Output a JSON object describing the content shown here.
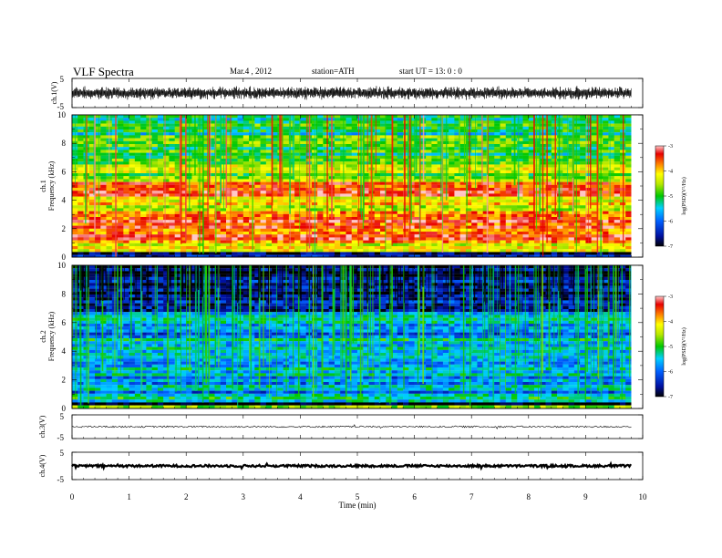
{
  "header": {
    "title": "VLF  Spectra",
    "date": "Mar.4   , 2012",
    "station": "station=ATH",
    "start": "start  UT  =    13: 0  : 0"
  },
  "chart_data": [
    {
      "type": "line",
      "panel": "waveform-ch1",
      "ylabel": "ch.1(V)",
      "xlim": [
        0,
        10
      ],
      "ylim": [
        -5,
        5
      ],
      "yticks": [
        "5",
        "-5"
      ],
      "x_extent": [
        0,
        9.8
      ],
      "amplitude_range": [
        -2.5,
        2.5
      ],
      "color": "#000000"
    },
    {
      "type": "heatmap",
      "panel": "spectrogram-ch1",
      "ylabel": [
        "ch.1",
        "Frequency  (kHz)"
      ],
      "xlim": [
        0,
        10
      ],
      "ylim": [
        0,
        10
      ],
      "yticks": [
        "0",
        "2",
        "4",
        "6",
        "8",
        "10"
      ],
      "x_extent": [
        0,
        9.8
      ],
      "colorbar": {
        "label": "log(PSD)(V²/Hz)",
        "range": [
          -7,
          -3
        ],
        "ticks": [
          "-3",
          "-4",
          "-5",
          "-6",
          "-7"
        ]
      },
      "bands_khz_logpsd": [
        [
          0.0,
          0.3,
          -6.5
        ],
        [
          0.3,
          0.9,
          -4.4
        ],
        [
          0.9,
          3.2,
          -3.6
        ],
        [
          3.2,
          4.2,
          -4.2
        ],
        [
          4.2,
          4.6,
          -3.7
        ],
        [
          4.6,
          5.2,
          -3.4
        ],
        [
          5.2,
          7.0,
          -4.6
        ],
        [
          7.0,
          8.5,
          -5.0
        ],
        [
          8.5,
          10.0,
          -5.2
        ]
      ]
    },
    {
      "type": "heatmap",
      "panel": "spectrogram-ch2",
      "ylabel": [
        "ch.2",
        "Frequency  (kHz)"
      ],
      "xlim": [
        0,
        10
      ],
      "ylim": [
        0,
        10
      ],
      "yticks": [
        "0",
        "2",
        "4",
        "6",
        "8",
        "10"
      ],
      "x_extent": [
        0,
        9.8
      ],
      "colorbar": {
        "label": "log(PSD)(V²/Hz)",
        "range": [
          -7,
          -3
        ],
        "ticks": [
          "-3",
          "-4",
          "-5",
          "-6",
          "-7"
        ]
      },
      "bands_khz_logpsd": [
        [
          0.0,
          0.2,
          -5.0
        ],
        [
          0.2,
          0.4,
          -6.8
        ],
        [
          0.4,
          1.0,
          -5.2
        ],
        [
          1.0,
          3.5,
          -5.7
        ],
        [
          3.5,
          5.0,
          -5.5
        ],
        [
          5.0,
          5.8,
          -5.9
        ],
        [
          5.8,
          6.8,
          -5.6
        ],
        [
          6.8,
          8.0,
          -6.4
        ],
        [
          8.0,
          10.0,
          -6.7
        ]
      ]
    },
    {
      "type": "line",
      "panel": "waveform-ch3",
      "ylabel": "ch.3(V)",
      "xlim": [
        0,
        10
      ],
      "ylim": [
        -5,
        5
      ],
      "yticks": [
        "5",
        "-5"
      ],
      "x_extent": [
        0,
        9.8
      ],
      "amplitude_range": [
        0.15,
        0.35
      ],
      "color": "#000000"
    },
    {
      "type": "line",
      "panel": "waveform-ch4",
      "ylabel": "ch.4(V)",
      "xlim": [
        0,
        10
      ],
      "ylim": [
        -5,
        5
      ],
      "yticks": [
        "5",
        "-5"
      ],
      "x_extent": [
        0,
        9.8
      ],
      "amplitude_range": [
        0.2,
        0.4
      ],
      "color": "#000000"
    }
  ],
  "xaxis": {
    "label": "Time  (min)",
    "ticks": [
      "0",
      "1",
      "2",
      "3",
      "4",
      "5",
      "6",
      "7",
      "8",
      "9",
      "10"
    ]
  }
}
